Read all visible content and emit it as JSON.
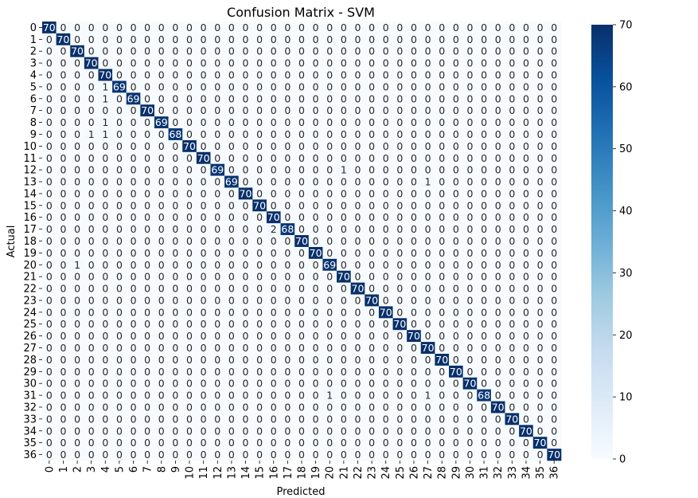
{
  "chart_data": {
    "type": "heatmap",
    "title": "Confusion Matrix - SVM",
    "xlabel": "Predicted",
    "ylabel": "Actual",
    "colormap": "Blues",
    "colorbar": {
      "min": 0,
      "max": 70,
      "ticks": [
        "0",
        "10",
        "20",
        "30",
        "40",
        "50",
        "60",
        "70"
      ]
    },
    "labels": [
      "0",
      "1",
      "2",
      "3",
      "4",
      "5",
      "6",
      "7",
      "8",
      "9",
      "10",
      "11",
      "12",
      "13",
      "14",
      "15",
      "16",
      "17",
      "18",
      "19",
      "20",
      "21",
      "22",
      "23",
      "24",
      "25",
      "26",
      "27",
      "28",
      "29",
      "30",
      "31",
      "32",
      "33",
      "34",
      "35",
      "36"
    ],
    "diagonal": [
      70,
      70,
      70,
      70,
      70,
      69,
      69,
      70,
      69,
      68,
      70,
      70,
      69,
      69,
      70,
      70,
      70,
      68,
      70,
      70,
      69,
      70,
      70,
      70,
      70,
      70,
      70,
      70,
      70,
      70,
      70,
      68,
      70,
      70,
      70,
      70,
      70
    ],
    "off_diagonal": [
      {
        "actual": 5,
        "predicted": 4,
        "count": 1
      },
      {
        "actual": 6,
        "predicted": 4,
        "count": 1
      },
      {
        "actual": 8,
        "predicted": 4,
        "count": 1
      },
      {
        "actual": 9,
        "predicted": 3,
        "count": 1
      },
      {
        "actual": 9,
        "predicted": 4,
        "count": 1
      },
      {
        "actual": 12,
        "predicted": 21,
        "count": 1
      },
      {
        "actual": 13,
        "predicted": 27,
        "count": 1
      },
      {
        "actual": 17,
        "predicted": 16,
        "count": 2
      },
      {
        "actual": 20,
        "predicted": 2,
        "count": 1
      },
      {
        "actual": 31,
        "predicted": 20,
        "count": 1
      },
      {
        "actual": 31,
        "predicted": 27,
        "count": 1
      }
    ]
  }
}
